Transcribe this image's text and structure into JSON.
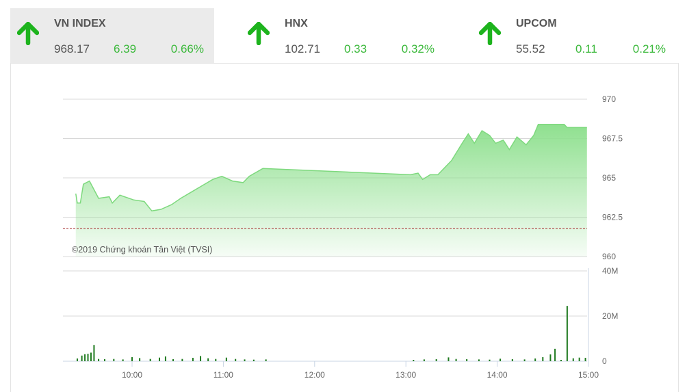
{
  "indices": [
    {
      "name": "VN INDEX",
      "value": "968.17",
      "change": "6.39",
      "percent": "0.66%",
      "direction": "up",
      "active": true
    },
    {
      "name": "HNX",
      "value": "102.71",
      "change": "0.33",
      "percent": "0.32%",
      "direction": "up",
      "active": false
    },
    {
      "name": "UPCOM",
      "value": "55.52",
      "change": "0.11",
      "percent": "0.21%",
      "direction": "up",
      "active": false
    }
  ],
  "colors": {
    "up": "#1db31d",
    "line": "#7ed97e",
    "fill": "#8fe08f",
    "reference": "#a52a2a",
    "volume": "#1f7a1f"
  },
  "chart_data": [
    {
      "type": "area",
      "ylim": [
        960,
        970
      ],
      "yticks": [
        "970",
        "967.5",
        "965",
        "962.5",
        "960"
      ],
      "ytick_values": [
        970,
        967.5,
        965,
        962.5,
        960
      ],
      "reference_value": 961.78,
      "grid": true,
      "annotation": "©2019 Chứng khoán Tân Việt (TVSI)",
      "x": [
        "9:23",
        "9:24",
        "9:26",
        "9:28",
        "9:32",
        "9:38",
        "9:45",
        "9:47",
        "9:52",
        "10:01",
        "10:08",
        "10:13",
        "10:19",
        "10:26",
        "10:32",
        "10:39",
        "10:46",
        "10:53",
        "10:59",
        "11:06",
        "11:13",
        "11:17",
        "11:26",
        "13:03",
        "13:08",
        "13:11",
        "13:16",
        "13:21",
        "13:30",
        "13:37",
        "13:41",
        "13:45",
        "13:50",
        "13:55",
        "13:59",
        "14:04",
        "14:08",
        "14:13",
        "14:19",
        "14:24",
        "14:27",
        "14:44",
        "14:46",
        "14:59"
      ],
      "y": [
        964.0,
        963.4,
        963.4,
        964.6,
        964.8,
        963.7,
        963.8,
        963.4,
        963.9,
        963.6,
        963.5,
        962.9,
        963.0,
        963.3,
        963.7,
        964.1,
        964.5,
        964.9,
        965.1,
        964.8,
        964.7,
        965.1,
        965.6,
        965.2,
        965.3,
        964.9,
        965.2,
        965.2,
        966.1,
        967.2,
        967.8,
        967.2,
        968.0,
        967.7,
        967.2,
        967.4,
        966.8,
        967.6,
        967.1,
        967.7,
        968.4,
        968.4,
        968.2,
        968.2
      ]
    },
    {
      "type": "bar",
      "ylim": [
        0,
        40
      ],
      "yticks": [
        "40M",
        "20M",
        "0"
      ],
      "ytick_values": [
        40,
        20,
        0
      ],
      "unit": "M",
      "xlim": [
        "9:20",
        "15:00"
      ],
      "xticks": [
        "10:00",
        "11:00",
        "12:00",
        "13:00",
        "14:00",
        "15:00"
      ],
      "grid": true,
      "x": [
        "9:24",
        "9:27",
        "9:29",
        "9:31",
        "9:33",
        "9:35",
        "9:38",
        "9:42",
        "9:48",
        "9:54",
        "10:00",
        "10:05",
        "10:12",
        "10:18",
        "10:22",
        "10:27",
        "10:33",
        "10:40",
        "10:45",
        "10:50",
        "10:55",
        "11:02",
        "11:08",
        "11:14",
        "11:20",
        "11:28",
        "13:05",
        "13:12",
        "13:20",
        "13:28",
        "13:33",
        "13:40",
        "13:48",
        "13:55",
        "14:02",
        "14:10",
        "14:18",
        "14:25",
        "14:30",
        "14:35",
        "14:38",
        "14:42",
        "14:46",
        "14:50",
        "14:54",
        "14:58"
      ],
      "values": [
        1.2,
        2.5,
        3.1,
        3.3,
        3.8,
        7.2,
        1.0,
        0.9,
        1.0,
        0.8,
        1.8,
        1.4,
        1.0,
        1.6,
        2.1,
        0.9,
        1.0,
        1.5,
        2.3,
        1.3,
        1.0,
        1.6,
        1.0,
        0.8,
        0.7,
        0.8,
        0.6,
        0.8,
        0.9,
        1.7,
        1.0,
        0.9,
        0.8,
        0.7,
        1.1,
        0.9,
        0.8,
        1.2,
        1.8,
        3.0,
        5.5,
        0.6,
        24.5,
        1.3,
        1.6,
        1.5
      ]
    }
  ]
}
